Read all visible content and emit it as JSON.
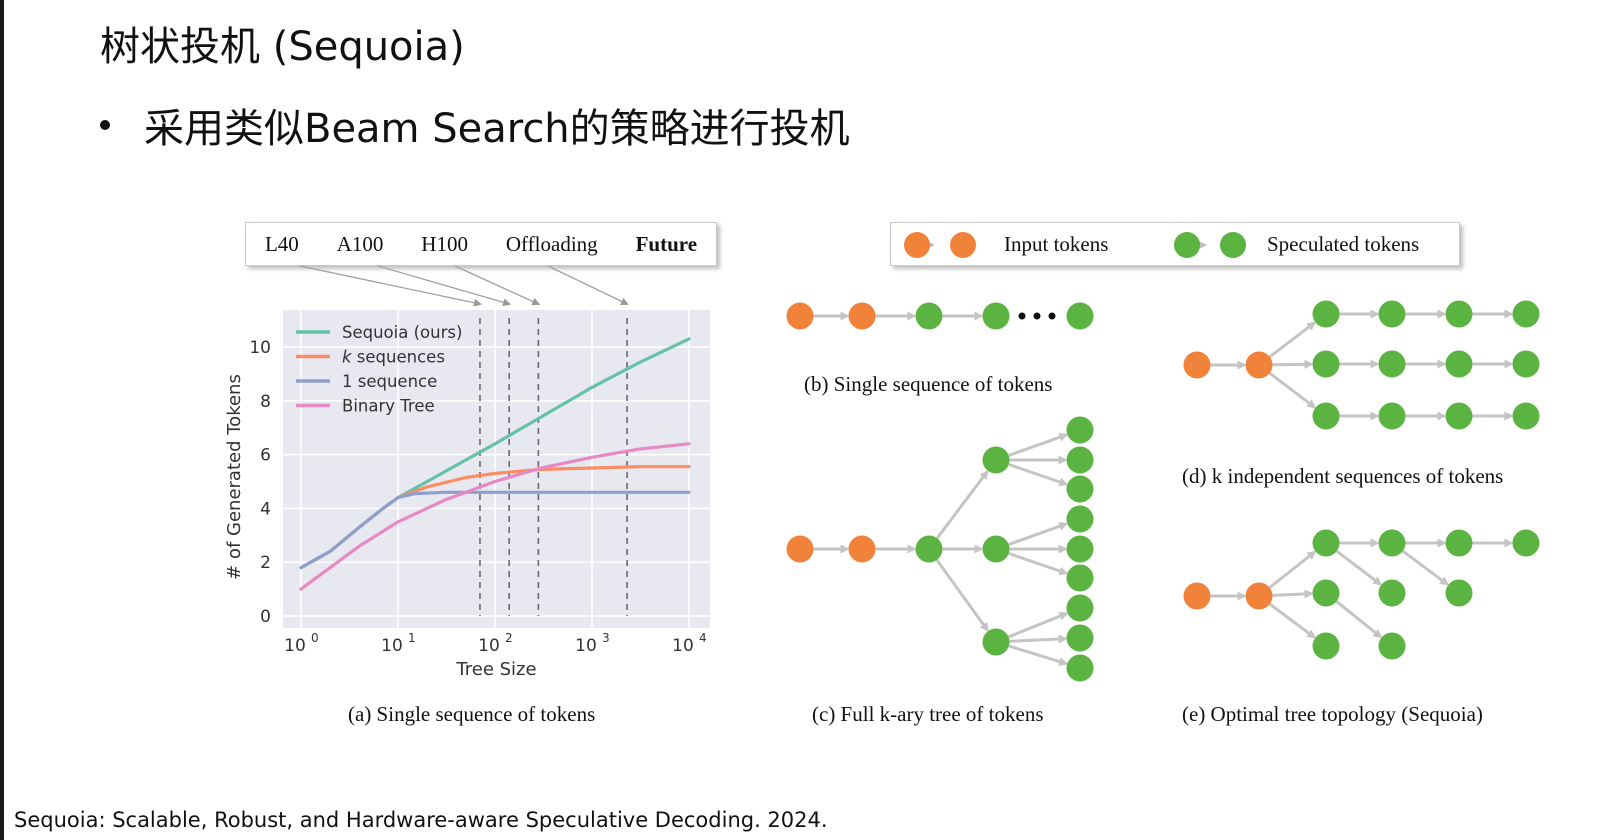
{
  "slide": {
    "title": "树状投机 (Sequoia)",
    "bullet": "采用类似Beam Search的策略进行投机",
    "footer": "Sequoia: Scalable, Robust, and Hardware-aware Speculative Decoding. 2024."
  },
  "hardware_legend": [
    "L40",
    "A100",
    "H100",
    "Offloading",
    "Future"
  ],
  "token_legend": {
    "input": "Input tokens",
    "speculated": "Speculated tokens"
  },
  "captions": {
    "a": "(a) Single sequence of tokens",
    "b": "(b) Single sequence of tokens",
    "c": "(c) Full k-ary tree of tokens",
    "d": "(d) k independent sequences of tokens",
    "e": "(e) Optimal tree topology (Sequoia)"
  },
  "node_colors": {
    "input": "#f0823a",
    "speculated": "#5bb341"
  },
  "chart_data": {
    "type": "line",
    "xlabel": "Tree Size",
    "ylabel": "# of Generated Tokens",
    "x_scale": "log",
    "xlim": [
      1,
      10000
    ],
    "ylim": [
      0,
      10.5
    ],
    "yticks": [
      0,
      2,
      4,
      6,
      8,
      10
    ],
    "xticks": [
      1,
      10,
      100,
      1000,
      10000
    ],
    "xtick_labels": [
      {
        "base": "10",
        "exp": "0"
      },
      {
        "base": "10",
        "exp": "1"
      },
      {
        "base": "10",
        "exp": "2"
      },
      {
        "base": "10",
        "exp": "3"
      },
      {
        "base": "10",
        "exp": "4"
      }
    ],
    "grid": true,
    "legend_position": "top-left",
    "series": [
      {
        "name": "Sequoia (ours)",
        "color": "#66c2a5",
        "points": [
          [
            1,
            1.8
          ],
          [
            2,
            2.4
          ],
          [
            4,
            3.3
          ],
          [
            7,
            4.0
          ],
          [
            10,
            4.4
          ],
          [
            20,
            5.0
          ],
          [
            50,
            5.8
          ],
          [
            100,
            6.4
          ],
          [
            300,
            7.4
          ],
          [
            1000,
            8.5
          ],
          [
            3000,
            9.4
          ],
          [
            10000,
            10.3
          ]
        ]
      },
      {
        "name": "k sequences",
        "italic_prefix": "k",
        "color": "#fc8d62",
        "points": [
          [
            1,
            1.8
          ],
          [
            2,
            2.4
          ],
          [
            4,
            3.3
          ],
          [
            7,
            4.0
          ],
          [
            10,
            4.4
          ],
          [
            20,
            4.8
          ],
          [
            50,
            5.15
          ],
          [
            100,
            5.3
          ],
          [
            300,
            5.45
          ],
          [
            1000,
            5.5
          ],
          [
            3000,
            5.55
          ],
          [
            10000,
            5.55
          ]
        ]
      },
      {
        "name": "1 sequence",
        "color": "#8da0cb",
        "points": [
          [
            1,
            1.8
          ],
          [
            2,
            2.4
          ],
          [
            4,
            3.3
          ],
          [
            7,
            4.0
          ],
          [
            10,
            4.4
          ],
          [
            15,
            4.55
          ],
          [
            30,
            4.6
          ],
          [
            100,
            4.6
          ],
          [
            1000,
            4.6
          ],
          [
            10000,
            4.6
          ]
        ]
      },
      {
        "name": "Binary Tree",
        "color": "#e78ac3",
        "points": [
          [
            1,
            1.0
          ],
          [
            2,
            1.8
          ],
          [
            4,
            2.6
          ],
          [
            10,
            3.5
          ],
          [
            30,
            4.3
          ],
          [
            100,
            5.0
          ],
          [
            300,
            5.5
          ],
          [
            1000,
            5.9
          ],
          [
            3000,
            6.2
          ],
          [
            10000,
            6.4
          ]
        ]
      }
    ],
    "vlines": [
      70,
      140,
      280,
      2300
    ]
  }
}
